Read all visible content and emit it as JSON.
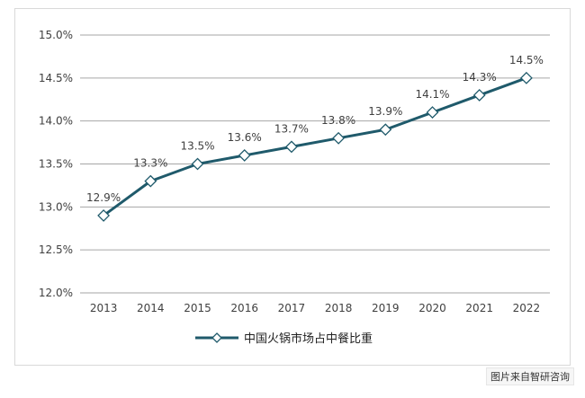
{
  "chart_data": {
    "type": "line",
    "categories": [
      "2013",
      "2014",
      "2015",
      "2016",
      "2017",
      "2018",
      "2019",
      "2020",
      "2021",
      "2022"
    ],
    "series": [
      {
        "name": "中国火锅市场占中餐比重",
        "values": [
          12.9,
          13.3,
          13.5,
          13.6,
          13.7,
          13.8,
          13.9,
          14.1,
          14.3,
          14.5
        ],
        "data_labels": [
          "12.9%",
          "13.3%",
          "13.5%",
          "13.6%",
          "13.7%",
          "13.8%",
          "13.9%",
          "14.1%",
          "14.3%",
          "14.5%"
        ],
        "color": "#1f5a6b",
        "marker": "diamond"
      }
    ],
    "y_ticks": [
      12.0,
      12.5,
      13.0,
      13.5,
      14.0,
      14.5,
      15.0
    ],
    "y_tick_labels": [
      "12.0%",
      "12.5%",
      "13.0%",
      "13.5%",
      "14.0%",
      "14.5%",
      "15.0%"
    ],
    "ylim": [
      12.0,
      15.0
    ],
    "title": "",
    "xlabel": "",
    "ylabel": "",
    "grid": true,
    "legend_position": "bottom"
  },
  "watermark": "图片来自智研咨询",
  "colors": {
    "grid": "#a6a6a6",
    "axis_text": "#404040",
    "marker_fill": "#ffffff"
  }
}
